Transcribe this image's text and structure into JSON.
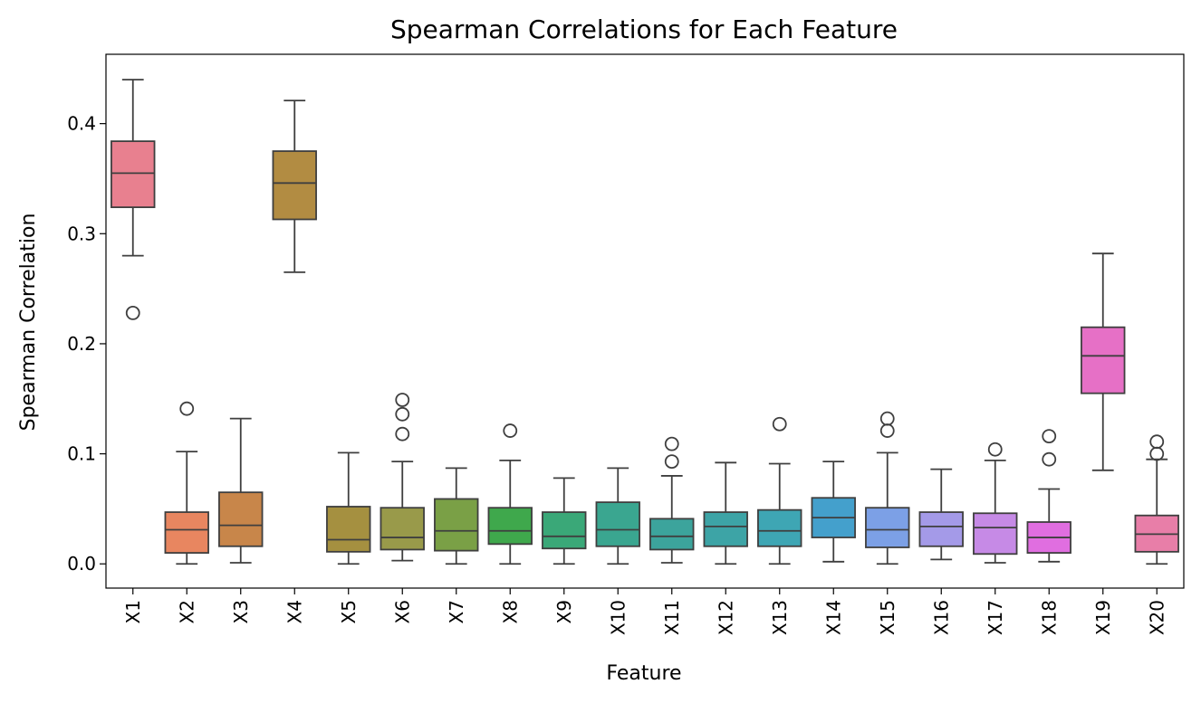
{
  "chart_data": {
    "type": "box",
    "title": "Spearman Correlations for Each Feature",
    "xlabel": "Feature",
    "ylabel": "Spearman Correlation",
    "ylim": [
      -0.022,
      0.463
    ],
    "yticks": [
      0.0,
      0.1,
      0.2,
      0.3,
      0.4
    ],
    "ytick_labels": [
      "0.0",
      "0.1",
      "0.2",
      "0.3",
      "0.4"
    ],
    "grid": false,
    "legend": "none",
    "categories": [
      "X1",
      "X2",
      "X3",
      "X4",
      "X5",
      "X6",
      "X7",
      "X8",
      "X9",
      "X10",
      "X11",
      "X12",
      "X13",
      "X14",
      "X15",
      "X16",
      "X17",
      "X18",
      "X19",
      "X20"
    ],
    "boxes": [
      {
        "category": "X1",
        "color": "#e8808f",
        "whisker_low": 0.28,
        "q1": 0.324,
        "median": 0.355,
        "q3": 0.384,
        "whisker_high": 0.44,
        "outliers": [
          0.228
        ]
      },
      {
        "category": "X2",
        "color": "#e88660",
        "whisker_low": 0.0,
        "q1": 0.01,
        "median": 0.031,
        "q3": 0.047,
        "whisker_high": 0.102,
        "outliers": [
          0.141
        ]
      },
      {
        "category": "X3",
        "color": "#c8864a",
        "whisker_low": 0.001,
        "q1": 0.016,
        "median": 0.035,
        "q3": 0.065,
        "whisker_high": 0.132,
        "outliers": []
      },
      {
        "category": "X4",
        "color": "#b28c42",
        "whisker_low": 0.265,
        "q1": 0.313,
        "median": 0.346,
        "q3": 0.375,
        "whisker_high": 0.421,
        "outliers": []
      },
      {
        "category": "X5",
        "color": "#a59040",
        "whisker_low": 0.0,
        "q1": 0.011,
        "median": 0.022,
        "q3": 0.052,
        "whisker_high": 0.101,
        "outliers": []
      },
      {
        "category": "X6",
        "color": "#999a4a",
        "whisker_low": 0.003,
        "q1": 0.013,
        "median": 0.024,
        "q3": 0.051,
        "whisker_high": 0.093,
        "outliers": [
          0.118,
          0.136,
          0.149
        ]
      },
      {
        "category": "X7",
        "color": "#7aa046",
        "whisker_low": 0.0,
        "q1": 0.012,
        "median": 0.03,
        "q3": 0.059,
        "whisker_high": 0.087,
        "outliers": []
      },
      {
        "category": "X8",
        "color": "#3fa84c",
        "whisker_low": 0.0,
        "q1": 0.018,
        "median": 0.03,
        "q3": 0.051,
        "whisker_high": 0.094,
        "outliers": [
          0.121
        ]
      },
      {
        "category": "X9",
        "color": "#3aa878",
        "whisker_low": 0.0,
        "q1": 0.014,
        "median": 0.025,
        "q3": 0.047,
        "whisker_high": 0.078,
        "outliers": []
      },
      {
        "category": "X10",
        "color": "#3aa690",
        "whisker_low": 0.0,
        "q1": 0.016,
        "median": 0.031,
        "q3": 0.056,
        "whisker_high": 0.087,
        "outliers": []
      },
      {
        "category": "X11",
        "color": "#3ca49c",
        "whisker_low": 0.001,
        "q1": 0.013,
        "median": 0.025,
        "q3": 0.041,
        "whisker_high": 0.08,
        "outliers": [
          0.093,
          0.109
        ]
      },
      {
        "category": "X12",
        "color": "#3da4a6",
        "whisker_low": 0.0,
        "q1": 0.016,
        "median": 0.034,
        "q3": 0.047,
        "whisker_high": 0.092,
        "outliers": []
      },
      {
        "category": "X13",
        "color": "#3ea6b4",
        "whisker_low": 0.0,
        "q1": 0.016,
        "median": 0.03,
        "q3": 0.049,
        "whisker_high": 0.091,
        "outliers": [
          0.127
        ]
      },
      {
        "category": "X14",
        "color": "#44a0cc",
        "whisker_low": 0.002,
        "q1": 0.024,
        "median": 0.042,
        "q3": 0.06,
        "whisker_high": 0.093,
        "outliers": []
      },
      {
        "category": "X15",
        "color": "#7ca0e6",
        "whisker_low": 0.0,
        "q1": 0.015,
        "median": 0.031,
        "q3": 0.051,
        "whisker_high": 0.101,
        "outliers": [
          0.121,
          0.132
        ]
      },
      {
        "category": "X16",
        "color": "#a49ae8",
        "whisker_low": 0.004,
        "q1": 0.016,
        "median": 0.034,
        "q3": 0.047,
        "whisker_high": 0.086,
        "outliers": []
      },
      {
        "category": "X17",
        "color": "#c68ae6",
        "whisker_low": 0.001,
        "q1": 0.009,
        "median": 0.033,
        "q3": 0.046,
        "whisker_high": 0.094,
        "outliers": [
          0.104
        ]
      },
      {
        "category": "X18",
        "color": "#e06ee0",
        "whisker_low": 0.002,
        "q1": 0.01,
        "median": 0.024,
        "q3": 0.038,
        "whisker_high": 0.068,
        "outliers": [
          0.095,
          0.116
        ]
      },
      {
        "category": "X19",
        "color": "#e670c6",
        "whisker_low": 0.085,
        "q1": 0.155,
        "median": 0.189,
        "q3": 0.215,
        "whisker_high": 0.282,
        "outliers": []
      },
      {
        "category": "X20",
        "color": "#e87ea8",
        "whisker_low": 0.0,
        "q1": 0.011,
        "median": 0.027,
        "q3": 0.044,
        "whisker_high": 0.095,
        "outliers": [
          0.1,
          0.111
        ]
      }
    ]
  }
}
